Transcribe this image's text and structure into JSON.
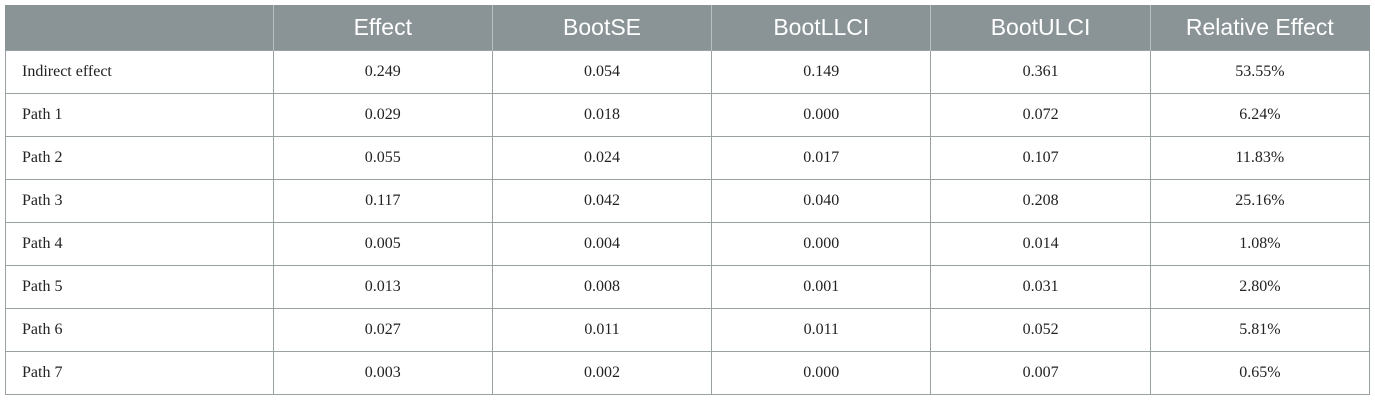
{
  "table": {
    "headers": [
      "",
      "Effect",
      "BootSE",
      "BootLLCI",
      "BootULCI",
      "Relative Effect"
    ],
    "rows": [
      {
        "label": "Indirect effect",
        "values": [
          "0.249",
          "0.054",
          "0.149",
          "0.361",
          "53.55%"
        ]
      },
      {
        "label": "Path 1",
        "values": [
          "0.029",
          "0.018",
          "0.000",
          "0.072",
          "6.24%"
        ]
      },
      {
        "label": "Path 2",
        "values": [
          "0.055",
          "0.024",
          "0.017",
          "0.107",
          "11.83%"
        ]
      },
      {
        "label": "Path 3",
        "values": [
          "0.117",
          "0.042",
          "0.040",
          "0.208",
          "25.16%"
        ]
      },
      {
        "label": "Path 4",
        "values": [
          "0.005",
          "0.004",
          "0.000",
          "0.014",
          "1.08%"
        ]
      },
      {
        "label": "Path 5",
        "values": [
          "0.013",
          "0.008",
          "0.001",
          "0.031",
          "2.80%"
        ]
      },
      {
        "label": "Path 6",
        "values": [
          "0.027",
          "0.011",
          "0.011",
          "0.052",
          "5.81%"
        ]
      },
      {
        "label": "Path 7",
        "values": [
          "0.003",
          "0.002",
          "0.000",
          "0.007",
          "0.65%"
        ]
      }
    ]
  }
}
